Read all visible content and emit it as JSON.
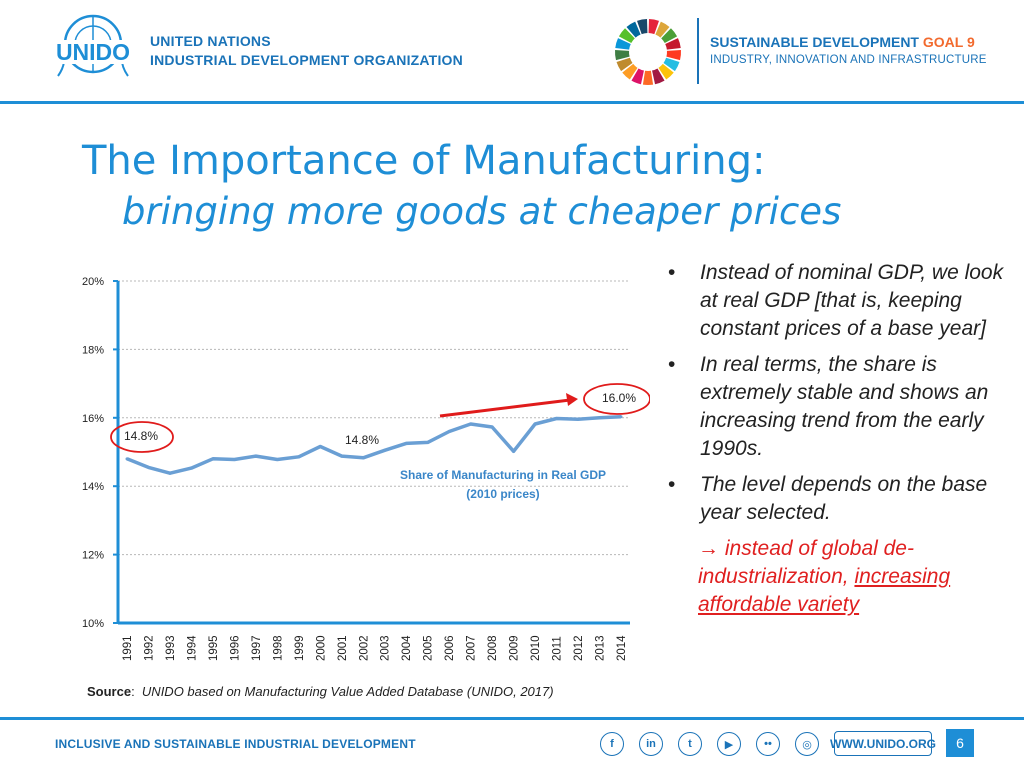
{
  "header": {
    "org_name_line1": "UNITED NATIONS",
    "org_name_line2": "INDUSTRIAL DEVELOPMENT ORGANIZATION",
    "logo_text": "UNIDO",
    "sdg_title": "SUSTAINABLE DEVELOPMENT",
    "sdg_goal": "GOAL 9",
    "sdg_subtitle": "INDUSTRY, INNOVATION AND INFRASTRUCTURE",
    "brand_color": "#1a73b8",
    "accent_color": "#1e8ed6",
    "goal_color": "#f26a2e"
  },
  "title": {
    "main": "The Importance of Manufacturing:",
    "sub": "bringing more goods at cheaper prices"
  },
  "chart_data": {
    "type": "line",
    "title": "Share of Manufacturing in Real GDP",
    "subtitle": "(2010 prices)",
    "x": [
      "1991",
      "1992",
      "1993",
      "1994",
      "1995",
      "1996",
      "1997",
      "1998",
      "1999",
      "2000",
      "2001",
      "2002",
      "2003",
      "2004",
      "2005",
      "2006",
      "2007",
      "2008",
      "2009",
      "2010",
      "2011",
      "2012",
      "2013",
      "2014"
    ],
    "series": [
      {
        "name": "Share of Manufacturing in Real GDP (2010 prices)",
        "values": [
          14.8,
          14.55,
          14.38,
          14.53,
          14.8,
          14.78,
          14.88,
          14.78,
          14.86,
          15.16,
          14.88,
          14.83,
          15.05,
          15.25,
          15.28,
          15.6,
          15.82,
          15.73,
          15.02,
          15.82,
          15.98,
          15.96,
          16.0,
          16.03
        ]
      }
    ],
    "yticks": [
      "10%",
      "12%",
      "14%",
      "16%",
      "18%",
      "20%"
    ],
    "ylim": [
      10,
      20
    ],
    "grid": true,
    "line_color": "#6a9fd4",
    "annotations": [
      {
        "text": "14.8%",
        "circled": true
      },
      {
        "text": "14.8%",
        "circled": false
      },
      {
        "text": "16.0%",
        "circled": true
      }
    ],
    "trend_arrow_color": "#e01b1b",
    "highlight_color": "#e01b1b"
  },
  "bullets": [
    "Instead of nominal GDP, we look at real GDP [that is, keeping constant prices of a base year]",
    "In real terms, the share is extremely stable and shows an increasing trend from the early 1990s.",
    "The level depends on the base year selected."
  ],
  "note": {
    "arrow": "→",
    "text": "instead of global de-industrialization,",
    "underlined": "increasing affordable variety"
  },
  "source": {
    "label": "Source",
    "text": "UNIDO based on Manufacturing Value Added Database (UNIDO, 2017)"
  },
  "footer": {
    "tagline": "INCLUSIVE AND SUSTAINABLE INDUSTRIAL DEVELOPMENT",
    "website": "WWW.UNIDO.ORG",
    "page_number": "6",
    "social_icons": [
      "facebook-icon",
      "linkedin-icon",
      "twitter-icon",
      "youtube-icon",
      "flickr-icon",
      "instagram-icon"
    ],
    "social_glyphs": [
      "f",
      "in",
      "t",
      "▶",
      "••",
      "◎"
    ]
  }
}
